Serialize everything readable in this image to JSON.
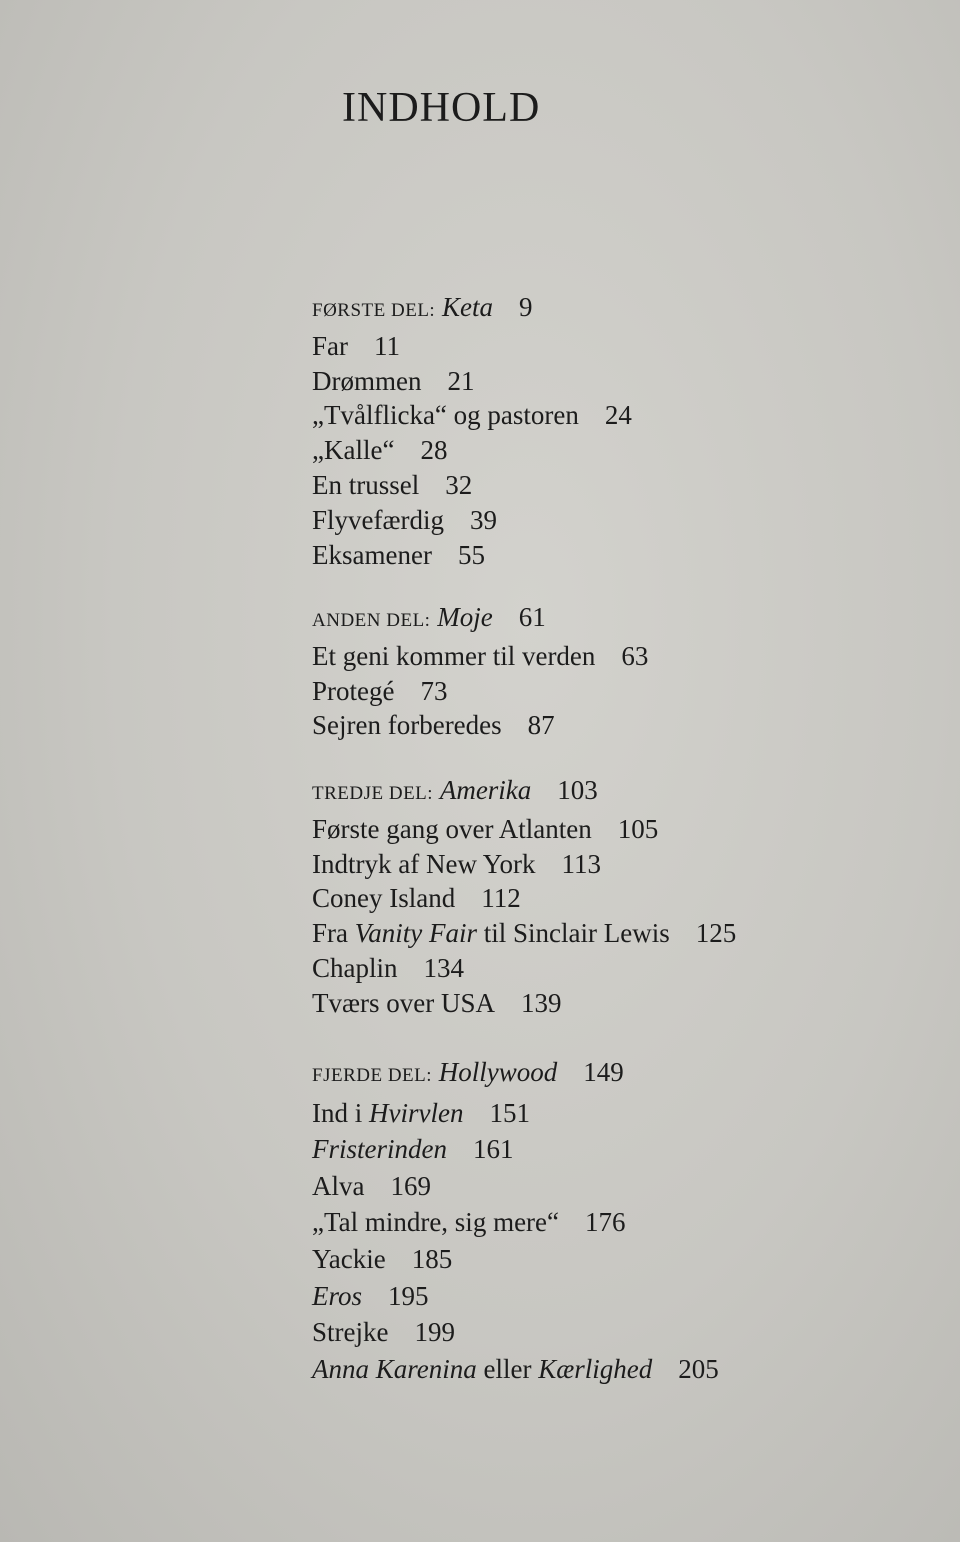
{
  "title": "INDHOLD",
  "sections": [
    {
      "label": "FØRSTE DEL:",
      "name": "Keta",
      "page": "9",
      "entries": [
        {
          "segments": [
            {
              "text": "Far",
              "italic": false
            }
          ],
          "page": "11"
        },
        {
          "segments": [
            {
              "text": "Drømmen",
              "italic": false
            }
          ],
          "page": "21"
        },
        {
          "segments": [
            {
              "text": "„Tvålflicka“ og pastoren",
              "italic": false
            }
          ],
          "page": "24"
        },
        {
          "segments": [
            {
              "text": "„Kalle“",
              "italic": false
            }
          ],
          "page": "28"
        },
        {
          "segments": [
            {
              "text": "En trussel",
              "italic": false
            }
          ],
          "page": "32"
        },
        {
          "segments": [
            {
              "text": "Flyvefærdig",
              "italic": false
            }
          ],
          "page": "39"
        },
        {
          "segments": [
            {
              "text": "Eksamener",
              "italic": false
            }
          ],
          "page": "55"
        }
      ]
    },
    {
      "label": "ANDEN DEL:",
      "name": "Moje",
      "page": "61",
      "entries": [
        {
          "segments": [
            {
              "text": "Et geni kommer til verden",
              "italic": false
            }
          ],
          "page": "63"
        },
        {
          "segments": [
            {
              "text": "Protegé",
              "italic": false
            }
          ],
          "page": "73"
        },
        {
          "segments": [
            {
              "text": "Sejren forberedes",
              "italic": false
            }
          ],
          "page": "87"
        }
      ]
    },
    {
      "label": "TREDJE DEL:",
      "name": "Amerika",
      "page": "103",
      "entries": [
        {
          "segments": [
            {
              "text": "Første gang over Atlanten",
              "italic": false
            }
          ],
          "page": "105"
        },
        {
          "segments": [
            {
              "text": "Indtryk af New York",
              "italic": false
            }
          ],
          "page": "113"
        },
        {
          "segments": [
            {
              "text": "Coney Island",
              "italic": false
            }
          ],
          "page": "112"
        },
        {
          "segments": [
            {
              "text": "Fra ",
              "italic": false
            },
            {
              "text": "Vanity Fair",
              "italic": true
            },
            {
              "text": " til Sinclair Lewis",
              "italic": false
            }
          ],
          "page": "125"
        },
        {
          "segments": [
            {
              "text": "Chaplin",
              "italic": false
            }
          ],
          "page": "134"
        },
        {
          "segments": [
            {
              "text": "Tværs over USA",
              "italic": false
            }
          ],
          "page": "139"
        }
      ]
    },
    {
      "label": "FJERDE DEL:",
      "name": "Hollywood",
      "page": "149",
      "entries": [
        {
          "segments": [
            {
              "text": "Ind i ",
              "italic": false
            },
            {
              "text": "Hvirvlen",
              "italic": true
            }
          ],
          "page": "151"
        },
        {
          "segments": [
            {
              "text": "Fristerinden",
              "italic": true
            }
          ],
          "page": "161"
        },
        {
          "segments": [
            {
              "text": "Alva",
              "italic": false
            }
          ],
          "page": "169"
        },
        {
          "segments": [
            {
              "text": "„Tal mindre, sig mere“",
              "italic": false
            }
          ],
          "page": "176"
        },
        {
          "segments": [
            {
              "text": "Yackie",
              "italic": false
            }
          ],
          "page": "185"
        },
        {
          "segments": [
            {
              "text": "Eros",
              "italic": true
            }
          ],
          "page": "195"
        },
        {
          "segments": [
            {
              "text": "Strejke",
              "italic": false
            }
          ],
          "page": "199"
        },
        {
          "segments": [
            {
              "text": "Anna Karenina",
              "italic": true
            },
            {
              "text": " eller ",
              "italic": false
            },
            {
              "text": "Kærlighed",
              "italic": true
            }
          ],
          "page": "205"
        }
      ]
    }
  ]
}
